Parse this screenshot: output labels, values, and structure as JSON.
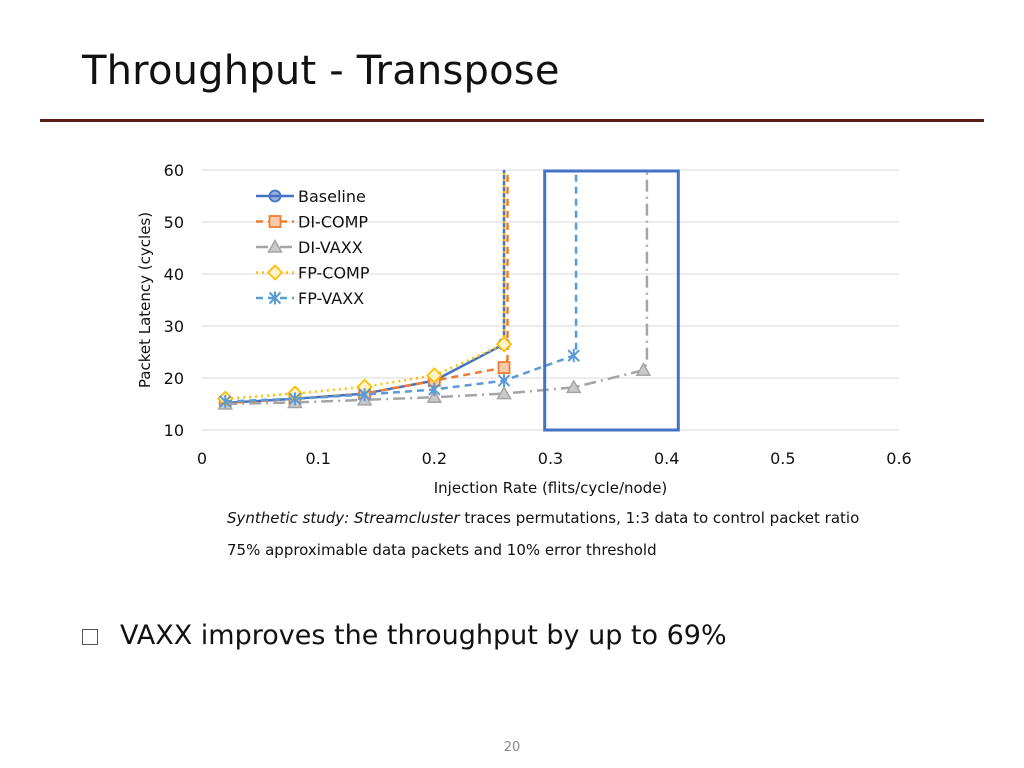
{
  "slide": {
    "title": "Throughput - Transpose",
    "caption_line1_italic": "Synthetic study: Streamcluster",
    "caption_line1_rest": " traces permutations, 1:3 data to control packet ratio",
    "caption_line2": "75% approximable data packets and 10% error threshold",
    "bullet": "VAXX improves the throughput by up to 69%",
    "page_number": "20"
  },
  "colors": {
    "title_rule": "#5a1e16",
    "highlight_box": "#4472c4"
  },
  "chart_data": {
    "type": "line",
    "title": "",
    "xlabel": "Injection Rate (flits/cycle/node)",
    "ylabel": "Packet Latency (cycles)",
    "xlim": [
      0,
      0.6
    ],
    "ylim": [
      10,
      60
    ],
    "xticks": [
      0,
      0.1,
      0.2,
      0.3,
      0.4,
      0.5,
      0.6
    ],
    "xtick_labels": [
      "0",
      "0.1",
      "0.2",
      "0.3",
      "0.4",
      "0.5",
      "0.6"
    ],
    "yticks": [
      10,
      20,
      30,
      40,
      50,
      60
    ],
    "ytick_labels": [
      "10",
      "20",
      "30",
      "40",
      "50",
      "60"
    ],
    "grid": true,
    "legend_position": "top-left",
    "highlight_region": {
      "x_range": [
        0.295,
        0.41
      ],
      "y_range": [
        10,
        60
      ]
    },
    "series": [
      {
        "name": "Baseline",
        "color": "#4472c4",
        "marker": "circle",
        "dash": "solid",
        "x": [
          0.02,
          0.08,
          0.14,
          0.2,
          0.26
        ],
        "y": [
          15.2,
          16,
          17,
          19.5,
          26.5
        ],
        "saturation": {
          "x": 0.26,
          "y_top": 60
        }
      },
      {
        "name": "DI-COMP",
        "color": "#ed7d31",
        "marker": "square",
        "dash": "dash",
        "x": [
          0.02,
          0.08,
          0.14,
          0.2,
          0.26
        ],
        "y": [
          15.2,
          16,
          17,
          19.5,
          22
        ],
        "saturation": {
          "x": 0.263,
          "y_top": 60
        }
      },
      {
        "name": "DI-VAXX",
        "color": "#a5a5a5",
        "marker": "triangle",
        "dash": "dashdot",
        "x": [
          0.02,
          0.08,
          0.14,
          0.2,
          0.26,
          0.32,
          0.38
        ],
        "y": [
          15,
          15.3,
          15.8,
          16.3,
          17,
          18.2,
          21.5
        ],
        "saturation": {
          "x": 0.383,
          "y_top": 60
        }
      },
      {
        "name": "FP-COMP",
        "color": "#ffc000",
        "marker": "diamond",
        "dash": "dot",
        "x": [
          0.02,
          0.08,
          0.14,
          0.2,
          0.26
        ],
        "y": [
          16,
          17,
          18.3,
          20.5,
          26.5
        ],
        "saturation": {
          "x": 0.26,
          "y_top": 60
        }
      },
      {
        "name": "FP-VAXX",
        "color": "#5b9bd5",
        "marker": "star",
        "dash": "dash",
        "x": [
          0.02,
          0.08,
          0.14,
          0.2,
          0.26,
          0.32
        ],
        "y": [
          15.5,
          16,
          16.8,
          17.8,
          19.5,
          24.3
        ],
        "saturation": {
          "x": 0.322,
          "y_top": 60
        }
      }
    ]
  }
}
